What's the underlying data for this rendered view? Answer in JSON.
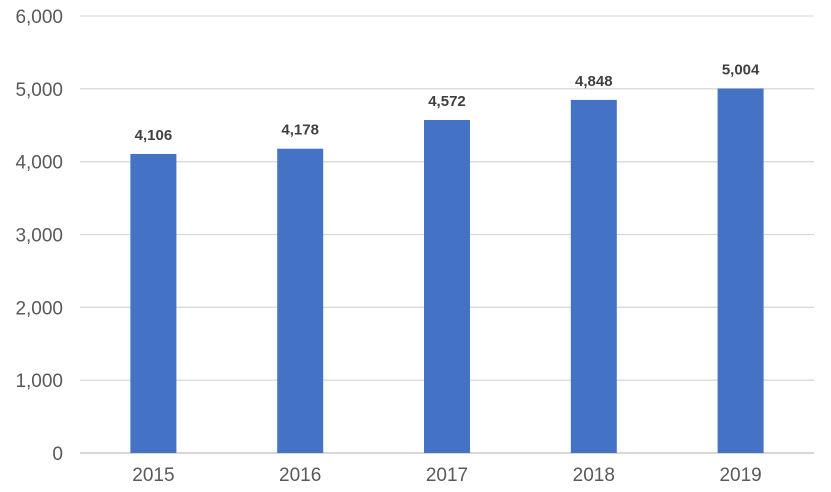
{
  "chart_data": {
    "type": "bar",
    "categories": [
      "2015",
      "2016",
      "2017",
      "2018",
      "2019"
    ],
    "values": [
      4106,
      4178,
      4572,
      4848,
      5004
    ],
    "data_labels": [
      "4,106",
      "4,178",
      "4,572",
      "4,848",
      "5,004"
    ],
    "y_ticks": [
      0,
      1000,
      2000,
      3000,
      4000,
      5000,
      6000
    ],
    "y_tick_labels": [
      "0",
      "1,000",
      "2,000",
      "3,000",
      "4,000",
      "5,000",
      "6,000"
    ],
    "ylim": [
      0,
      6000
    ],
    "title": "",
    "xlabel": "",
    "ylabel": "",
    "grid": true,
    "legend": "none",
    "colors": {
      "bar": "#4472C4",
      "grid": "#D9D9D9",
      "tick_text": "#595959",
      "label_text": "#404040"
    }
  }
}
